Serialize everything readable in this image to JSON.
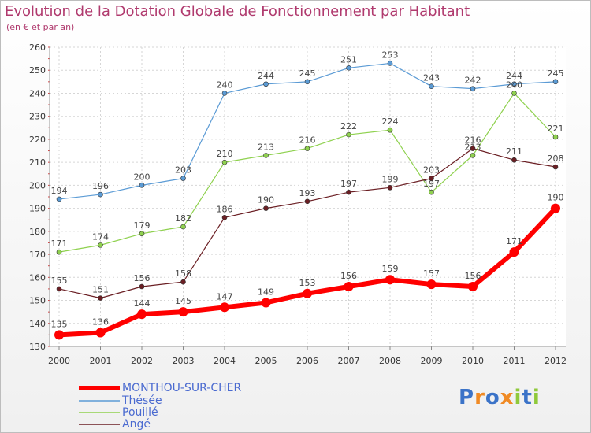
{
  "chart_data": {
    "type": "line",
    "title": "Evolution de la Dotation Globale de Fonctionnement par Habitant",
    "subtitle": "(en € et par an)",
    "categories": [
      "2000",
      "2001",
      "2002",
      "2003",
      "2004",
      "2005",
      "2006",
      "2007",
      "2008",
      "2009",
      "2010",
      "2011",
      "2012"
    ],
    "ylim": [
      130,
      260
    ],
    "yticks": [
      130,
      140,
      150,
      160,
      170,
      180,
      190,
      200,
      210,
      220,
      230,
      240,
      250,
      260
    ],
    "grid": true,
    "series": [
      {
        "name": "Thésée",
        "color": "#5b9bd5",
        "values": [
          194,
          196,
          200,
          203,
          240,
          244,
          245,
          251,
          253,
          243,
          242,
          244,
          245
        ]
      },
      {
        "name": "Pouillé",
        "color": "#8fd14f",
        "values": [
          171,
          174,
          179,
          182,
          210,
          213,
          216,
          222,
          224,
          197,
          213,
          240,
          221
        ]
      },
      {
        "name": "Angé",
        "color": "#6b1f24",
        "values": [
          155,
          151,
          156,
          158,
          186,
          190,
          193,
          197,
          199,
          203,
          216,
          211,
          208
        ]
      },
      {
        "name": "MONTHOU-SUR-CHER",
        "color": "#ff0000",
        "values": [
          135,
          136,
          144,
          145,
          147,
          149,
          153,
          156,
          159,
          157,
          156,
          171,
          190
        ]
      }
    ],
    "legend": [
      "MONTHOU-SUR-CHER",
      "Thésée",
      "Pouillé",
      "Angé"
    ]
  },
  "logo": {
    "text": "Proxiti"
  }
}
